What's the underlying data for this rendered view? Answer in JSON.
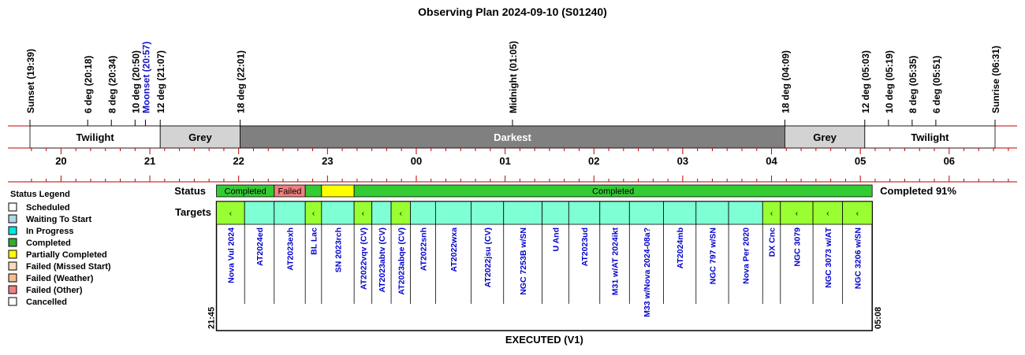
{
  "chart_data": {
    "type": "timeline",
    "title": "Observing Plan 2024-09-10 (S01240)",
    "events": [
      {
        "label": "Sunset (19:39)",
        "time": "19:39",
        "color": "#000000"
      },
      {
        "label": "6 deg (20:18)",
        "time": "20:18",
        "color": "#000000"
      },
      {
        "label": "8 deg (20:34)",
        "time": "20:34",
        "color": "#000000"
      },
      {
        "label": "10 deg (20:50)",
        "time": "20:50",
        "color": "#000000"
      },
      {
        "label": "Moonset (20:57)",
        "time": "20:57",
        "color": "#1515c8"
      },
      {
        "label": "12 deg (21:07)",
        "time": "21:07",
        "color": "#000000"
      },
      {
        "label": "18 deg (22:01)",
        "time": "22:01",
        "color": "#000000"
      },
      {
        "label": "Midnight (01:05)",
        "time": "01:05",
        "color": "#000000"
      },
      {
        "label": "18 deg (04:09)",
        "time": "04:09",
        "color": "#000000"
      },
      {
        "label": "12 deg (05:03)",
        "time": "05:03",
        "color": "#000000"
      },
      {
        "label": "10 deg (05:19)",
        "time": "05:19",
        "color": "#000000"
      },
      {
        "label": "8 deg (05:35)",
        "time": "05:35",
        "color": "#000000"
      },
      {
        "label": "6 deg (05:51)",
        "time": "05:51",
        "color": "#000000"
      },
      {
        "label": "Sunrise (06:31)",
        "time": "06:31",
        "color": "#000000"
      }
    ],
    "twilight_bands": [
      {
        "label": "Twilight",
        "start": "19:39",
        "end": "21:07",
        "color": "#ffffff",
        "text_color": "#000000"
      },
      {
        "label": "Grey",
        "start": "21:07",
        "end": "22:01",
        "color": "#d3d3d3",
        "text_color": "#000000"
      },
      {
        "label": "Darkest",
        "start": "22:01",
        "end": "04:09",
        "color": "#808080",
        "text_color": "#ffffff"
      },
      {
        "label": "Grey",
        "start": "04:09",
        "end": "05:03",
        "color": "#d3d3d3",
        "text_color": "#000000"
      },
      {
        "label": "Twilight",
        "start": "05:03",
        "end": "06:31",
        "color": "#ffffff",
        "text_color": "#000000"
      }
    ],
    "hour_ticks": [
      "20",
      "21",
      "22",
      "23",
      "00",
      "01",
      "02",
      "03",
      "04",
      "05",
      "06"
    ],
    "status_label": "Status",
    "targets_label": "Targets",
    "status_bar": [
      {
        "label": "Completed",
        "start": "21:45",
        "end": "22:24",
        "color": "#33cc33"
      },
      {
        "label": "Failed",
        "start": "22:24",
        "end": "22:45",
        "color": "#f08080"
      },
      {
        "label": "",
        "start": "22:45",
        "end": "22:56",
        "color": "#33cc33"
      },
      {
        "label": "",
        "start": "22:56",
        "end": "23:18",
        "color": "#ffff00"
      },
      {
        "label": "Completed",
        "start": "23:18",
        "end": "05:08",
        "color": "#33cc33"
      }
    ],
    "completion_text": "Completed 91%",
    "plan_start": "21:45",
    "plan_end": "05:08",
    "targets": [
      {
        "name": "Nova Vul 2024",
        "start": "21:45",
        "end": "22:04",
        "color": "#99ff33",
        "marker": "‹"
      },
      {
        "name": "AT2024ed",
        "start": "22:04",
        "end": "22:24",
        "color": "#7fffd4",
        "marker": ""
      },
      {
        "name": "AT2023exh",
        "start": "22:24",
        "end": "22:45",
        "color": "#7fffd4",
        "marker": ""
      },
      {
        "name": "BL Lac",
        "start": "22:45",
        "end": "22:56",
        "color": "#99ff33",
        "marker": "‹"
      },
      {
        "name": "SN 2023rch",
        "start": "22:56",
        "end": "23:18",
        "color": "#7fffd4",
        "marker": ""
      },
      {
        "name": "AT2022vqv (CV)",
        "start": "23:18",
        "end": "23:30",
        "color": "#99ff33",
        "marker": "‹"
      },
      {
        "name": "AT2023abtv (CV)",
        "start": "23:30",
        "end": "23:43",
        "color": "#7fffd4",
        "marker": ""
      },
      {
        "name": "AT2023abqe (CV)",
        "start": "23:43",
        "end": "23:56",
        "color": "#99ff33",
        "marker": "‹"
      },
      {
        "name": "AT2022snh",
        "start": "23:56",
        "end": "00:13",
        "color": "#7fffd4",
        "marker": ""
      },
      {
        "name": "AT2022wxa",
        "start": "00:13",
        "end": "00:37",
        "color": "#7fffd4",
        "marker": ""
      },
      {
        "name": "AT2022jsu (CV)",
        "start": "00:37",
        "end": "00:59",
        "color": "#7fffd4",
        "marker": ""
      },
      {
        "name": "NGC 7253B w/SN",
        "start": "00:59",
        "end": "01:25",
        "color": "#7fffd4",
        "marker": ""
      },
      {
        "name": "U And",
        "start": "01:25",
        "end": "01:43",
        "color": "#7fffd4",
        "marker": ""
      },
      {
        "name": "AT2023ud",
        "start": "01:43",
        "end": "02:04",
        "color": "#7fffd4",
        "marker": ""
      },
      {
        "name": "M31 w/AT 2024ikt",
        "start": "02:04",
        "end": "02:24",
        "color": "#7fffd4",
        "marker": ""
      },
      {
        "name": "M33 w/Nova 2024-08a?",
        "start": "02:24",
        "end": "02:47",
        "color": "#7fffd4",
        "marker": ""
      },
      {
        "name": "AT2024mb",
        "start": "02:47",
        "end": "03:09",
        "color": "#7fffd4",
        "marker": ""
      },
      {
        "name": "NGC 797 w/SN",
        "start": "03:09",
        "end": "03:31",
        "color": "#7fffd4",
        "marker": ""
      },
      {
        "name": "Nova Per 2020",
        "start": "03:31",
        "end": "03:54",
        "color": "#7fffd4",
        "marker": ""
      },
      {
        "name": "DX Cnc",
        "start": "03:54",
        "end": "04:06",
        "color": "#99ff33",
        "marker": "‹"
      },
      {
        "name": "NGC 3079",
        "start": "04:06",
        "end": "04:28",
        "color": "#99ff33",
        "marker": "‹"
      },
      {
        "name": "NGC 3073 w/AT",
        "start": "04:28",
        "end": "04:48",
        "color": "#99ff33",
        "marker": "‹"
      },
      {
        "name": "NGC 3206 w/SN",
        "start": "04:48",
        "end": "05:08",
        "color": "#99ff33",
        "marker": "‹"
      }
    ],
    "footer_label": "EXECUTED (V1)",
    "legend_title": "Status Legend",
    "legend": [
      {
        "label": "Scheduled",
        "color": "#ffffff"
      },
      {
        "label": "Waiting To Start",
        "color": "#add8e6"
      },
      {
        "label": "In Progress",
        "color": "#00e5e5"
      },
      {
        "label": "Completed",
        "color": "#33aa33"
      },
      {
        "label": "Partially Completed",
        "color": "#ffff00"
      },
      {
        "label": "Failed (Missed Start)",
        "color": "#ffdab9"
      },
      {
        "label": "Failed (Weather)",
        "color": "#f4c08a"
      },
      {
        "label": "Failed (Other)",
        "color": "#f08080"
      },
      {
        "label": "Cancelled",
        "color": "#ffffff"
      }
    ]
  }
}
